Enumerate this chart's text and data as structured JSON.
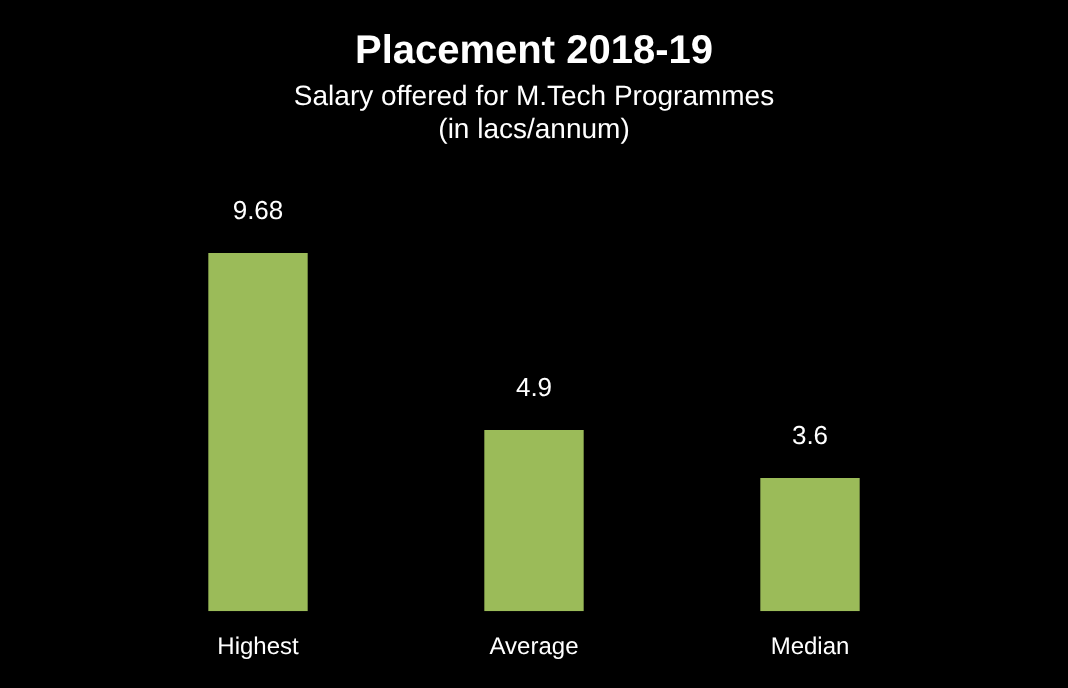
{
  "chart_data": {
    "type": "bar",
    "title": "Placement 2018-19",
    "subtitle": "Salary offered for M.Tech Programmes\n(in lacs/annum)",
    "categories": [
      "Highest",
      "Average",
      "Median"
    ],
    "values": [
      9.68,
      4.9,
      3.6
    ],
    "color": "#9bbb59",
    "data_labels": true,
    "legend": false
  }
}
